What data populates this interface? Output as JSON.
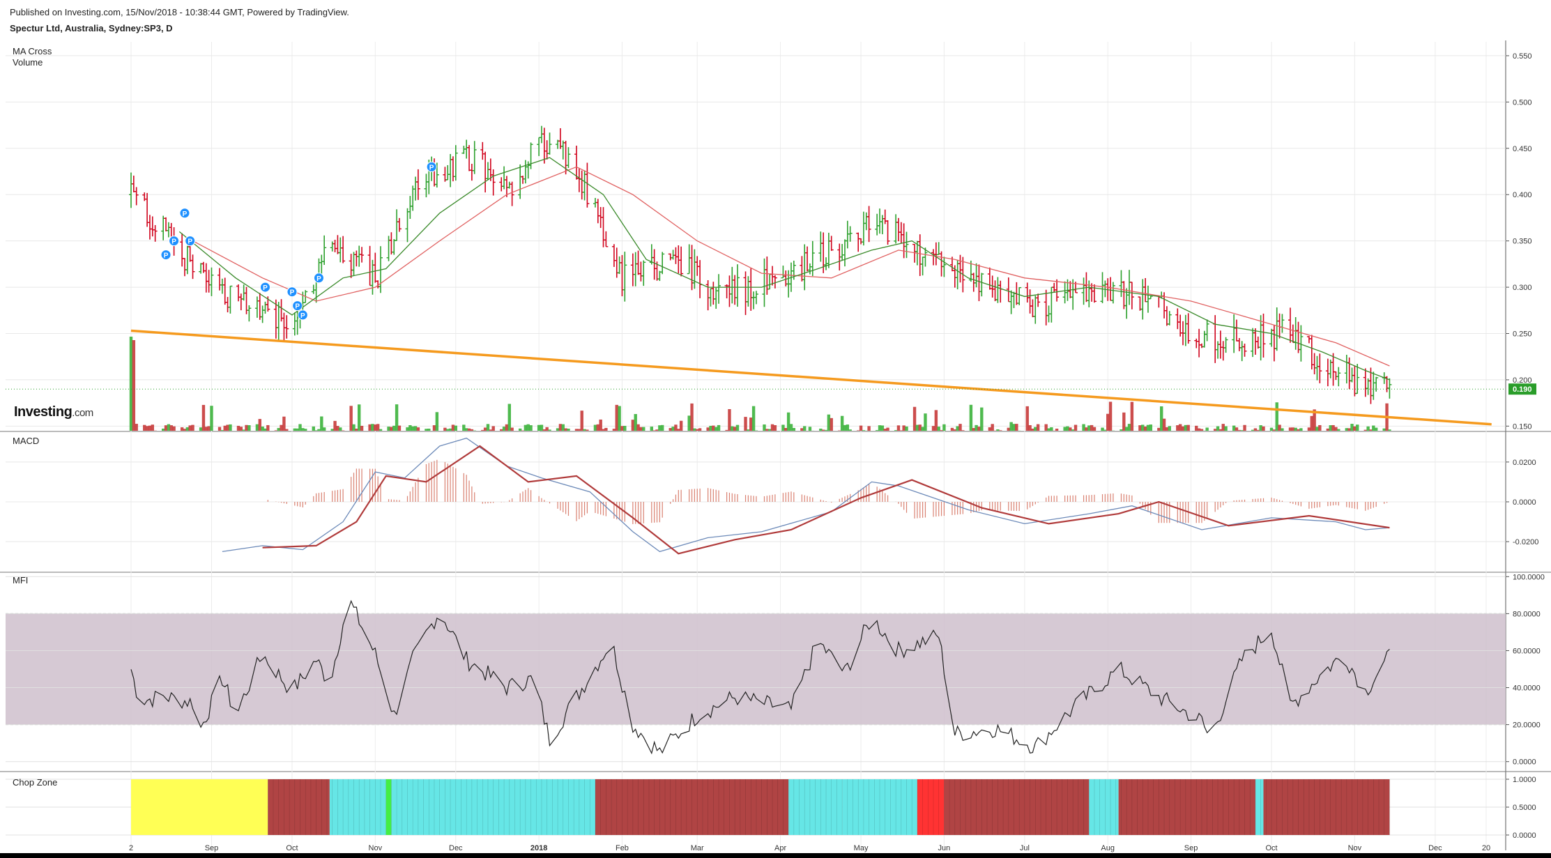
{
  "header": {
    "published": "Published on Investing.com, 15/Nov/2018 - 10:38:44 GMT, Powered by TradingView.",
    "symbol": "Spectur Ltd, Australia, Sydney:SP3, D"
  },
  "logo": {
    "brand": "Investing",
    "suffix": ".com"
  },
  "colors": {
    "up": "#2ca02c",
    "down": "#d0021b",
    "ma_fast": "#3a8a2a",
    "ma_slow": "#e06060",
    "trendline": "#f59a1e",
    "macd": "#6b89b8",
    "signal": "#b03a3a",
    "mfi_band": "#cfc0cc",
    "chop_yellow": "#ffff55",
    "chop_cyan": "#66e6e6",
    "chop_red": "#b04444",
    "price_badge": "#2a9d2a"
  },
  "chart_data": [
    {
      "type": "line",
      "pane": "price",
      "labels": [
        "MA Cross",
        "Volume"
      ],
      "x_ticks": [
        "2",
        "Sep",
        "Oct",
        "Nov",
        "Dec",
        "2018",
        "Feb",
        "Mar",
        "Apr",
        "May",
        "Jun",
        "Jul",
        "Aug",
        "Sep",
        "Oct",
        "Nov",
        "Dec",
        "20"
      ],
      "y_ticks": [
        "0.550",
        "0.500",
        "0.450",
        "0.400",
        "0.350",
        "0.300",
        "0.250",
        "0.200",
        "0.150"
      ],
      "ylim": [
        0.145,
        0.565
      ],
      "last_price": "0.190",
      "marker_label": "P",
      "price_key_points": [
        {
          "date": "2017-08-02",
          "value": 0.4
        },
        {
          "date": "2017-08-20",
          "value": 0.34
        },
        {
          "date": "2017-09-01",
          "value": 0.3
        },
        {
          "date": "2017-09-29",
          "value": 0.26
        },
        {
          "date": "2017-10-15",
          "value": 0.34
        },
        {
          "date": "2017-11-02",
          "value": 0.31
        },
        {
          "date": "2017-11-18",
          "value": 0.42
        },
        {
          "date": "2017-12-08",
          "value": 0.44
        },
        {
          "date": "2017-12-20",
          "value": 0.4
        },
        {
          "date": "2018-01-02",
          "value": 0.46
        },
        {
          "date": "2018-01-15",
          "value": 0.43
        },
        {
          "date": "2018-02-01",
          "value": 0.31
        },
        {
          "date": "2018-02-20",
          "value": 0.33
        },
        {
          "date": "2018-03-10",
          "value": 0.29
        },
        {
          "date": "2018-04-01",
          "value": 0.31
        },
        {
          "date": "2018-04-20",
          "value": 0.34
        },
        {
          "date": "2018-05-08",
          "value": 0.37
        },
        {
          "date": "2018-05-25",
          "value": 0.33
        },
        {
          "date": "2018-06-15",
          "value": 0.3
        },
        {
          "date": "2018-07-05",
          "value": 0.28
        },
        {
          "date": "2018-07-25",
          "value": 0.3
        },
        {
          "date": "2018-08-15",
          "value": 0.29
        },
        {
          "date": "2018-09-01",
          "value": 0.25
        },
        {
          "date": "2018-09-20",
          "value": 0.24
        },
        {
          "date": "2018-10-05",
          "value": 0.25
        },
        {
          "date": "2018-10-20",
          "value": 0.22
        },
        {
          "date": "2018-11-01",
          "value": 0.2
        },
        {
          "date": "2018-11-14",
          "value": 0.19
        }
      ],
      "ma_fast_points": [
        {
          "date": "2017-08-20",
          "value": 0.36
        },
        {
          "date": "2017-09-10",
          "value": 0.31
        },
        {
          "date": "2017-10-01",
          "value": 0.27
        },
        {
          "date": "2017-10-20",
          "value": 0.31
        },
        {
          "date": "2017-11-05",
          "value": 0.32
        },
        {
          "date": "2017-11-25",
          "value": 0.38
        },
        {
          "date": "2017-12-15",
          "value": 0.42
        },
        {
          "date": "2018-01-05",
          "value": 0.44
        },
        {
          "date": "2018-01-25",
          "value": 0.4
        },
        {
          "date": "2018-02-10",
          "value": 0.33
        },
        {
          "date": "2018-03-05",
          "value": 0.3
        },
        {
          "date": "2018-03-25",
          "value": 0.3
        },
        {
          "date": "2018-04-15",
          "value": 0.32
        },
        {
          "date": "2018-05-05",
          "value": 0.34
        },
        {
          "date": "2018-05-20",
          "value": 0.35
        },
        {
          "date": "2018-06-10",
          "value": 0.31
        },
        {
          "date": "2018-07-01",
          "value": 0.29
        },
        {
          "date": "2018-07-25",
          "value": 0.3
        },
        {
          "date": "2018-08-20",
          "value": 0.29
        },
        {
          "date": "2018-09-10",
          "value": 0.26
        },
        {
          "date": "2018-10-01",
          "value": 0.25
        },
        {
          "date": "2018-10-20",
          "value": 0.23
        },
        {
          "date": "2018-11-05",
          "value": 0.21
        },
        {
          "date": "2018-11-14",
          "value": 0.2
        }
      ],
      "ma_slow_points": [
        {
          "date": "2017-08-25",
          "value": 0.35
        },
        {
          "date": "2017-09-20",
          "value": 0.31
        },
        {
          "date": "2017-10-10",
          "value": 0.285
        },
        {
          "date": "2017-11-01",
          "value": 0.3
        },
        {
          "date": "2017-11-25",
          "value": 0.35
        },
        {
          "date": "2017-12-20",
          "value": 0.4
        },
        {
          "date": "2018-01-15",
          "value": 0.43
        },
        {
          "date": "2018-02-05",
          "value": 0.4
        },
        {
          "date": "2018-03-01",
          "value": 0.35
        },
        {
          "date": "2018-03-25",
          "value": 0.315
        },
        {
          "date": "2018-04-20",
          "value": 0.31
        },
        {
          "date": "2018-05-15",
          "value": 0.34
        },
        {
          "date": "2018-06-05",
          "value": 0.33
        },
        {
          "date": "2018-07-01",
          "value": 0.31
        },
        {
          "date": "2018-08-01",
          "value": 0.3
        },
        {
          "date": "2018-09-01",
          "value": 0.285
        },
        {
          "date": "2018-10-01",
          "value": 0.26
        },
        {
          "date": "2018-10-25",
          "value": 0.24
        },
        {
          "date": "2018-11-14",
          "value": 0.215
        }
      ],
      "trendline": [
        {
          "date": "2017-08-02",
          "value": 0.253
        },
        {
          "date": "2018-12-22",
          "value": 0.152
        }
      ],
      "p_markers": [
        {
          "date": "2017-08-15",
          "value": 0.335
        },
        {
          "date": "2017-08-18",
          "value": 0.35
        },
        {
          "date": "2017-08-22",
          "value": 0.38
        },
        {
          "date": "2017-08-24",
          "value": 0.35
        },
        {
          "date": "2017-09-21",
          "value": 0.3
        },
        {
          "date": "2017-10-01",
          "value": 0.295
        },
        {
          "date": "2017-10-03",
          "value": 0.28
        },
        {
          "date": "2017-10-05",
          "value": 0.27
        },
        {
          "date": "2017-10-11",
          "value": 0.31
        },
        {
          "date": "2017-11-22",
          "value": 0.43
        }
      ]
    },
    {
      "type": "line",
      "pane": "macd",
      "labels": [
        "MACD"
      ],
      "y_ticks": [
        "0.0200",
        "0.0000",
        "-0.0200"
      ],
      "ylim": [
        -0.035,
        0.035
      ],
      "macd_points": [
        {
          "date": "2017-09-05",
          "value": -0.025
        },
        {
          "date": "2017-09-20",
          "value": -0.022
        },
        {
          "date": "2017-10-05",
          "value": -0.024
        },
        {
          "date": "2017-10-20",
          "value": -0.01
        },
        {
          "date": "2017-11-01",
          "value": 0.015
        },
        {
          "date": "2017-11-12",
          "value": 0.012
        },
        {
          "date": "2017-11-25",
          "value": 0.028
        },
        {
          "date": "2017-12-05",
          "value": 0.032
        },
        {
          "date": "2017-12-20",
          "value": 0.018
        },
        {
          "date": "2018-01-02",
          "value": 0.012
        },
        {
          "date": "2018-01-20",
          "value": 0.005
        },
        {
          "date": "2018-02-05",
          "value": -0.015
        },
        {
          "date": "2018-02-15",
          "value": -0.025
        },
        {
          "date": "2018-03-05",
          "value": -0.018
        },
        {
          "date": "2018-03-25",
          "value": -0.015
        },
        {
          "date": "2018-04-20",
          "value": -0.005
        },
        {
          "date": "2018-05-05",
          "value": 0.01
        },
        {
          "date": "2018-05-15",
          "value": 0.008
        },
        {
          "date": "2018-06-10",
          "value": -0.004
        },
        {
          "date": "2018-07-01",
          "value": -0.011
        },
        {
          "date": "2018-07-25",
          "value": -0.006
        },
        {
          "date": "2018-08-10",
          "value": -0.002
        },
        {
          "date": "2018-09-05",
          "value": -0.014
        },
        {
          "date": "2018-10-01",
          "value": -0.008
        },
        {
          "date": "2018-10-25",
          "value": -0.01
        },
        {
          "date": "2018-11-05",
          "value": -0.014
        },
        {
          "date": "2018-11-14",
          "value": -0.013
        }
      ],
      "signal_points": [
        {
          "date": "2017-09-20",
          "value": -0.023
        },
        {
          "date": "2017-10-10",
          "value": -0.022
        },
        {
          "date": "2017-10-25",
          "value": -0.01
        },
        {
          "date": "2017-11-05",
          "value": 0.013
        },
        {
          "date": "2017-11-20",
          "value": 0.01
        },
        {
          "date": "2017-12-10",
          "value": 0.028
        },
        {
          "date": "2017-12-28",
          "value": 0.01
        },
        {
          "date": "2018-01-15",
          "value": 0.013
        },
        {
          "date": "2018-02-05",
          "value": -0.008
        },
        {
          "date": "2018-02-22",
          "value": -0.026
        },
        {
          "date": "2018-03-15",
          "value": -0.019
        },
        {
          "date": "2018-04-05",
          "value": -0.014
        },
        {
          "date": "2018-05-01",
          "value": 0.002
        },
        {
          "date": "2018-05-20",
          "value": 0.011
        },
        {
          "date": "2018-06-15",
          "value": -0.003
        },
        {
          "date": "2018-07-10",
          "value": -0.011
        },
        {
          "date": "2018-08-05",
          "value": -0.006
        },
        {
          "date": "2018-08-20",
          "value": 0.0
        },
        {
          "date": "2018-09-15",
          "value": -0.012
        },
        {
          "date": "2018-10-15",
          "value": -0.007
        },
        {
          "date": "2018-11-14",
          "value": -0.013
        }
      ]
    },
    {
      "type": "line",
      "pane": "mfi",
      "labels": [
        "MFI"
      ],
      "y_ticks": [
        "100.0000",
        "80.0000",
        "60.0000",
        "40.0000",
        "20.0000",
        "0.0000"
      ],
      "ylim": [
        -5,
        102
      ],
      "band": [
        20,
        80
      ],
      "mfi_points": [
        {
          "date": "2017-08-02",
          "value": 50
        },
        {
          "date": "2017-08-05",
          "value": 33
        },
        {
          "date": "2017-08-15",
          "value": 35
        },
        {
          "date": "2017-08-25",
          "value": 32
        },
        {
          "date": "2017-08-28",
          "value": 18
        },
        {
          "date": "2017-09-05",
          "value": 45
        },
        {
          "date": "2017-09-10",
          "value": 25
        },
        {
          "date": "2017-09-20",
          "value": 58
        },
        {
          "date": "2017-10-01",
          "value": 38
        },
        {
          "date": "2017-10-10",
          "value": 55
        },
        {
          "date": "2017-10-15",
          "value": 42
        },
        {
          "date": "2017-10-22",
          "value": 88
        },
        {
          "date": "2017-11-01",
          "value": 58
        },
        {
          "date": "2017-11-08",
          "value": 25
        },
        {
          "date": "2017-11-15",
          "value": 55
        },
        {
          "date": "2017-11-25",
          "value": 82
        },
        {
          "date": "2017-12-05",
          "value": 55
        },
        {
          "date": "2017-12-20",
          "value": 40
        },
        {
          "date": "2017-12-30",
          "value": 45
        },
        {
          "date": "2018-01-05",
          "value": 12
        },
        {
          "date": "2018-01-15",
          "value": 35
        },
        {
          "date": "2018-01-28",
          "value": 65
        },
        {
          "date": "2018-02-05",
          "value": 20
        },
        {
          "date": "2018-02-15",
          "value": 5
        },
        {
          "date": "2018-03-01",
          "value": 25
        },
        {
          "date": "2018-03-15",
          "value": 35
        },
        {
          "date": "2018-04-05",
          "value": 28
        },
        {
          "date": "2018-04-15",
          "value": 65
        },
        {
          "date": "2018-04-25",
          "value": 48
        },
        {
          "date": "2018-05-05",
          "value": 78
        },
        {
          "date": "2018-05-15",
          "value": 60
        },
        {
          "date": "2018-05-30",
          "value": 68
        },
        {
          "date": "2018-06-05",
          "value": 15
        },
        {
          "date": "2018-06-20",
          "value": 18
        },
        {
          "date": "2018-07-05",
          "value": 8
        },
        {
          "date": "2018-07-20",
          "value": 30
        },
        {
          "date": "2018-08-05",
          "value": 50
        },
        {
          "date": "2018-08-20",
          "value": 35
        },
        {
          "date": "2018-09-05",
          "value": 22
        },
        {
          "date": "2018-09-08",
          "value": 12
        },
        {
          "date": "2018-09-20",
          "value": 55
        },
        {
          "date": "2018-10-01",
          "value": 72
        },
        {
          "date": "2018-10-08",
          "value": 30
        },
        {
          "date": "2018-10-20",
          "value": 48
        },
        {
          "date": "2018-10-28",
          "value": 58
        },
        {
          "date": "2018-11-05",
          "value": 38
        },
        {
          "date": "2018-11-14",
          "value": 57
        }
      ]
    },
    {
      "type": "heatmap",
      "pane": "chop",
      "labels": [
        "Chop Zone"
      ],
      "y_ticks": [
        "1.0000",
        "0.5000",
        "0.0000"
      ],
      "zones": [
        {
          "from": "2017-08-02",
          "to": "2017-09-22",
          "color": "#ffff55"
        },
        {
          "from": "2017-09-22",
          "to": "2017-10-15",
          "color": "#b04444"
        },
        {
          "from": "2017-10-15",
          "to": "2017-11-05",
          "color": "#66e6e6"
        },
        {
          "from": "2017-11-05",
          "to": "2017-11-07",
          "color": "#44ee44"
        },
        {
          "from": "2017-11-07",
          "to": "2018-01-05",
          "color": "#66e6e6"
        },
        {
          "from": "2018-01-05",
          "to": "2018-01-22",
          "color": "#66e6e6"
        },
        {
          "from": "2018-01-22",
          "to": "2018-04-04",
          "color": "#b04444"
        },
        {
          "from": "2018-04-04",
          "to": "2018-04-24",
          "color": "#66e6e6"
        },
        {
          "from": "2018-04-24",
          "to": "2018-05-22",
          "color": "#66e6e6"
        },
        {
          "from": "2018-05-22",
          "to": "2018-06-01",
          "color": "#ff3333"
        },
        {
          "from": "2018-06-01",
          "to": "2018-07-25",
          "color": "#b04444"
        },
        {
          "from": "2018-07-25",
          "to": "2018-08-05",
          "color": "#66e6e6"
        },
        {
          "from": "2018-08-05",
          "to": "2018-09-25",
          "color": "#b04444"
        },
        {
          "from": "2018-09-25",
          "to": "2018-09-28",
          "color": "#66e6e6"
        },
        {
          "from": "2018-09-28",
          "to": "2018-11-14",
          "color": "#b04444"
        }
      ]
    }
  ]
}
